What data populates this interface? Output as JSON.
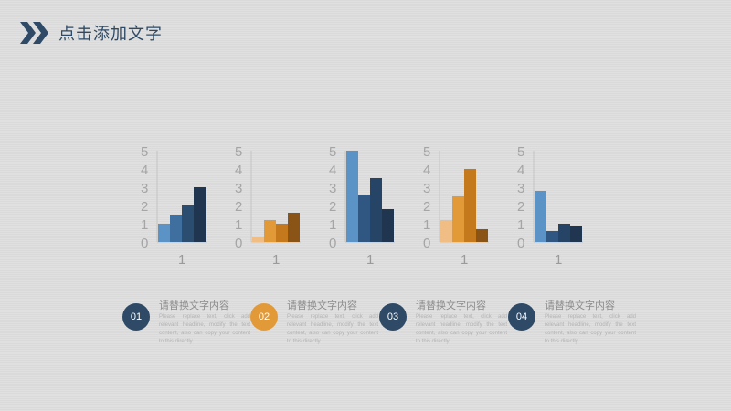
{
  "header": {
    "title": "点击添加文字",
    "icon": "double-chevron-right-icon",
    "accent_color": "#2e4a66"
  },
  "chart_data": [
    {
      "type": "bar",
      "categories": [
        "1"
      ],
      "series": [
        {
          "values": [
            1
          ],
          "color": "#5b93c7"
        },
        {
          "values": [
            1.5
          ],
          "color": "#3f6f9e"
        },
        {
          "values": [
            2
          ],
          "color": "#2b4d70"
        },
        {
          "values": [
            3
          ],
          "color": "#1f3550"
        }
      ],
      "yticks": [
        "0",
        "1",
        "2",
        "3",
        "4",
        "5"
      ],
      "ylim": [
        0,
        5
      ]
    },
    {
      "type": "bar",
      "categories": [
        "1"
      ],
      "series": [
        {
          "values": [
            0.3
          ],
          "color": "#f0bd84"
        },
        {
          "values": [
            1.2
          ],
          "color": "#e29a38"
        },
        {
          "values": [
            1
          ],
          "color": "#c47a1c"
        },
        {
          "values": [
            1.6
          ],
          "color": "#8a5416"
        }
      ],
      "yticks": [
        "0",
        "1",
        "2",
        "3",
        "4",
        "5"
      ],
      "ylim": [
        0,
        5
      ]
    },
    {
      "type": "bar",
      "categories": [
        "1"
      ],
      "series": [
        {
          "values": [
            5
          ],
          "color": "#5b93c7"
        },
        {
          "values": [
            2.6
          ],
          "color": "#2f5781"
        },
        {
          "values": [
            3.5
          ],
          "color": "#264566"
        },
        {
          "values": [
            1.8
          ],
          "color": "#1f3550"
        }
      ],
      "yticks": [
        "0",
        "1",
        "2",
        "3",
        "4",
        "5"
      ],
      "ylim": [
        0,
        5
      ]
    },
    {
      "type": "bar",
      "categories": [
        "1"
      ],
      "series": [
        {
          "values": [
            1.2
          ],
          "color": "#f0bd84"
        },
        {
          "values": [
            2.5
          ],
          "color": "#e29a38"
        },
        {
          "values": [
            4
          ],
          "color": "#c47a1c"
        },
        {
          "values": [
            0.7
          ],
          "color": "#8a5416"
        }
      ],
      "yticks": [
        "0",
        "1",
        "2",
        "3",
        "4",
        "5"
      ],
      "ylim": [
        0,
        5
      ]
    },
    {
      "type": "bar",
      "categories": [
        "1"
      ],
      "series": [
        {
          "values": [
            2.8
          ],
          "color": "#5b93c7"
        },
        {
          "values": [
            0.6
          ],
          "color": "#2f5781"
        },
        {
          "values": [
            1
          ],
          "color": "#264566"
        },
        {
          "values": [
            0.9
          ],
          "color": "#1f3550"
        }
      ],
      "yticks": [
        "0",
        "1",
        "2",
        "3",
        "4",
        "5"
      ],
      "ylim": [
        0,
        5
      ]
    }
  ],
  "items": [
    {
      "number": "01",
      "title": "请替换文字内容",
      "text": "Please replace text, click add relevant headline, modify the text content, also can copy your content to this directly.",
      "color": "#2e4a66"
    },
    {
      "number": "02",
      "title": "请替换文字内容",
      "text": "Please replace text, click add relevant headline, modify the text content, also can copy your content to this directly.",
      "color": "#e29a38"
    },
    {
      "number": "03",
      "title": "请替换文字内容",
      "text": "Please replace text, click add relevant headline, modify the text content, also can copy your content to this directly.",
      "color": "#2e4a66"
    },
    {
      "number": "04",
      "title": "请替换文字内容",
      "text": "Please replace text, click add relevant headline, modify the text content, also can copy your content to this directly.",
      "color": "#2e4a66"
    }
  ]
}
